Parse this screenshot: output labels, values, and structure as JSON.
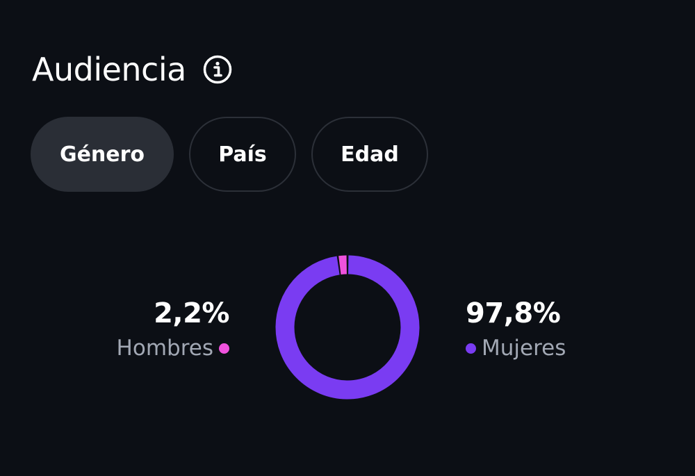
{
  "header": {
    "title": "Audiencia",
    "info_icon": "info-circle-icon"
  },
  "tabs": [
    {
      "label": "Género",
      "active": true
    },
    {
      "label": "País",
      "active": false
    },
    {
      "label": "Edad",
      "active": false
    }
  ],
  "colors": {
    "background": "#0c0f15",
    "hombres": "#f052dd",
    "mujeres": "#7a3cf2",
    "tab_active_bg": "#2a2e36",
    "tab_border": "#2c3038"
  },
  "stats": {
    "hombres": {
      "value": "2,2%",
      "label": "Hombres",
      "fraction": 0.022
    },
    "mujeres": {
      "value": "97,8%",
      "label": "Mujeres",
      "fraction": 0.978
    }
  }
}
